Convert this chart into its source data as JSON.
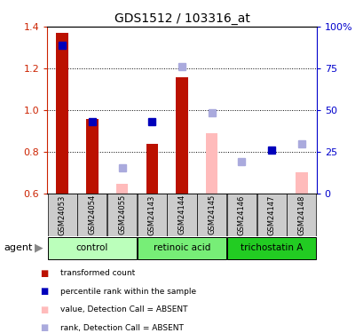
{
  "title": "GDS1512 / 103316_at",
  "samples": [
    "GSM24053",
    "GSM24054",
    "GSM24055",
    "GSM24143",
    "GSM24144",
    "GSM24145",
    "GSM24146",
    "GSM24147",
    "GSM24148"
  ],
  "groups": [
    {
      "label": "control",
      "indices": [
        0,
        1,
        2
      ],
      "color": "#bbffbb"
    },
    {
      "label": "retinoic acid",
      "indices": [
        3,
        4,
        5
      ],
      "color": "#77ee77"
    },
    {
      "label": "trichostatin A",
      "indices": [
        6,
        7,
        8
      ],
      "color": "#22cc22"
    }
  ],
  "red_values": [
    1.37,
    0.955,
    null,
    0.835,
    1.155,
    null,
    null,
    null,
    null
  ],
  "pink_values": [
    null,
    null,
    0.645,
    null,
    null,
    0.89,
    null,
    null,
    0.7
  ],
  "blue_values": [
    1.31,
    0.945,
    null,
    0.945,
    null,
    null,
    null,
    0.805,
    null
  ],
  "lightblue_values": [
    null,
    null,
    0.72,
    null,
    1.21,
    0.985,
    0.75,
    null,
    0.835
  ],
  "ylim": [
    0.6,
    1.4
  ],
  "yticks": [
    0.6,
    0.8,
    1.0,
    1.2,
    1.4
  ],
  "right_yticks_pct": [
    0,
    25,
    50,
    75,
    100
  ],
  "right_ylabels": [
    "0",
    "25",
    "50",
    "75",
    "100%"
  ],
  "bar_width": 0.4,
  "marker_size": 6,
  "colors": {
    "red": "#bb1100",
    "pink": "#ffbbbb",
    "blue": "#0000bb",
    "lightblue": "#aaaadd",
    "sample_bg": "#cccccc",
    "axis_red": "#cc2200",
    "axis_blue": "#0000cc"
  },
  "legend_items": [
    {
      "color": "#bb1100",
      "label": "transformed count"
    },
    {
      "color": "#0000bb",
      "label": "percentile rank within the sample"
    },
    {
      "color": "#ffbbbb",
      "label": "value, Detection Call = ABSENT"
    },
    {
      "color": "#aaaadd",
      "label": "rank, Detection Call = ABSENT"
    }
  ]
}
